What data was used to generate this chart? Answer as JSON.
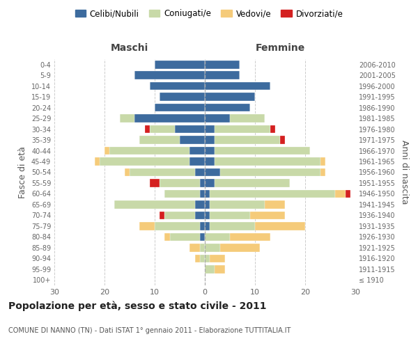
{
  "age_groups": [
    "100+",
    "95-99",
    "90-94",
    "85-89",
    "80-84",
    "75-79",
    "70-74",
    "65-69",
    "60-64",
    "55-59",
    "50-54",
    "45-49",
    "40-44",
    "35-39",
    "30-34",
    "25-29",
    "20-24",
    "15-19",
    "10-14",
    "5-9",
    "0-4"
  ],
  "birth_years": [
    "≤ 1910",
    "1911-1915",
    "1916-1920",
    "1921-1925",
    "1926-1930",
    "1931-1935",
    "1936-1940",
    "1941-1945",
    "1946-1950",
    "1951-1955",
    "1956-1960",
    "1961-1965",
    "1966-1970",
    "1971-1975",
    "1976-1980",
    "1981-1985",
    "1986-1990",
    "1991-1995",
    "1996-2000",
    "2001-2005",
    "2006-2010"
  ],
  "colors": {
    "celibi": "#3d6b9e",
    "coniugati": "#c8d9a8",
    "vedovi": "#f5cb7a",
    "divorziati": "#d42020"
  },
  "maschi": {
    "celibi": [
      0,
      0,
      0,
      0,
      1,
      1,
      2,
      2,
      1,
      1,
      2,
      3,
      3,
      5,
      6,
      14,
      10,
      9,
      11,
      14,
      10
    ],
    "coniugati": [
      0,
      0,
      1,
      1,
      6,
      9,
      6,
      16,
      7,
      8,
      13,
      18,
      16,
      8,
      5,
      3,
      0,
      0,
      0,
      0,
      0
    ],
    "vedovi": [
      0,
      0,
      1,
      2,
      1,
      3,
      0,
      0,
      0,
      0,
      1,
      1,
      1,
      0,
      0,
      0,
      0,
      0,
      0,
      0,
      0
    ],
    "divorziati": [
      0,
      0,
      0,
      0,
      0,
      0,
      1,
      0,
      0,
      2,
      0,
      0,
      0,
      0,
      1,
      0,
      0,
      0,
      0,
      0,
      0
    ]
  },
  "femmine": {
    "celibi": [
      0,
      0,
      0,
      0,
      0,
      1,
      1,
      1,
      1,
      2,
      3,
      2,
      2,
      2,
      2,
      5,
      9,
      10,
      13,
      7,
      7
    ],
    "coniugati": [
      0,
      2,
      1,
      3,
      5,
      9,
      8,
      11,
      25,
      15,
      20,
      21,
      19,
      13,
      11,
      7,
      0,
      0,
      0,
      0,
      0
    ],
    "vedovi": [
      0,
      2,
      3,
      8,
      8,
      10,
      7,
      4,
      2,
      0,
      1,
      1,
      0,
      0,
      0,
      0,
      0,
      0,
      0,
      0,
      0
    ],
    "divorziati": [
      0,
      0,
      0,
      0,
      0,
      0,
      0,
      0,
      1,
      0,
      0,
      0,
      0,
      1,
      1,
      0,
      0,
      0,
      0,
      0,
      0
    ]
  },
  "xlim": 30,
  "title": "Popolazione per età, sesso e stato civile - 2011",
  "subtitle": "COMUNE DI NANNO (TN) - Dati ISTAT 1° gennaio 2011 - Elaborazione TUTTITALIA.IT",
  "ylabel_left": "Fasce di età",
  "ylabel_right": "Anni di nascita",
  "xlabel_maschi": "Maschi",
  "xlabel_femmine": "Femmine",
  "legend_labels": [
    "Celibi/Nubili",
    "Coniugati/e",
    "Vedovi/e",
    "Divorziati/e"
  ],
  "background_color": "#ffffff",
  "grid_color": "#cccccc"
}
